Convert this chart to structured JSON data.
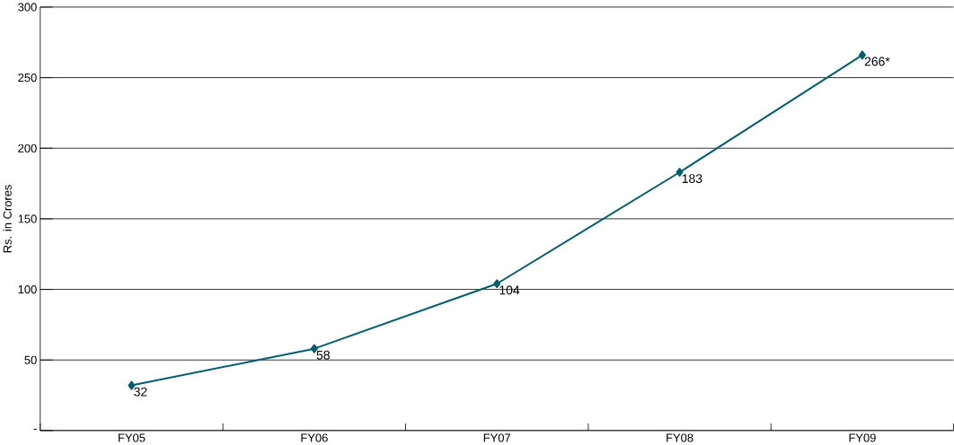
{
  "chart_data": {
    "type": "line",
    "ylabel": "Rs. in Crores",
    "categories": [
      "FY05",
      "FY06",
      "FY07",
      "FY08",
      "FY09"
    ],
    "series": [
      {
        "color": "#005f6e",
        "values": [
          32,
          58,
          104,
          183,
          266
        ],
        "value_labels": [
          "32",
          "58",
          "104",
          "183",
          "266*"
        ]
      }
    ],
    "ylim": [
      0,
      300
    ],
    "yticks": [
      {
        "value": 0,
        "label": "-"
      },
      50,
      100,
      150,
      200,
      250,
      300
    ],
    "grid": "y",
    "marker": "diamond",
    "line_style": "solid"
  }
}
